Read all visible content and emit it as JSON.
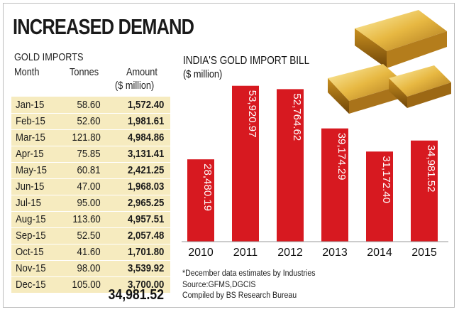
{
  "headline": "INCREASED DEMAND",
  "table": {
    "title": "GOLD IMPORTS",
    "headers": {
      "month": "Month",
      "tonnes": "Tonnes",
      "amount": "Amount",
      "amount_unit": "($ million)"
    },
    "rows": [
      {
        "month": "Jan-15",
        "tonnes": "58.60",
        "amount": "1,572.40"
      },
      {
        "month": "Feb-15",
        "tonnes": "52.60",
        "amount": "1,981.61"
      },
      {
        "month": "Mar-15",
        "tonnes": "121.80",
        "amount": "4,984.86"
      },
      {
        "month": "Apr-15",
        "tonnes": "75.85",
        "amount": "3,131.41"
      },
      {
        "month": "May-15",
        "tonnes": "60.81",
        "amount": "2,421.25"
      },
      {
        "month": "Jun-15",
        "tonnes": "47.00",
        "amount": "1,968.03"
      },
      {
        "month": "Jul-15",
        "tonnes": "95.00",
        "amount": "2,965.25"
      },
      {
        "month": "Aug-15",
        "tonnes": "113.60",
        "amount": "4,957.51"
      },
      {
        "month": "Sep-15",
        "tonnes": "52.50",
        "amount": "2,057.48"
      },
      {
        "month": "Oct-15",
        "tonnes": "41.60",
        "amount": "1,701.80"
      },
      {
        "month": "Nov-15",
        "tonnes": "98.00",
        "amount": "3,539.92"
      },
      {
        "month": "Dec-15",
        "tonnes": "105.00",
        "amount": "3,700.00"
      }
    ],
    "total": "34,981.52"
  },
  "chart_data": {
    "type": "bar",
    "title": "INDIA'S GOLD IMPORT BILL",
    "ylabel": "($ million)",
    "categories": [
      "2010",
      "2011",
      "2012",
      "2013",
      "2014",
      "2015"
    ],
    "values": [
      28480.19,
      53920.97,
      52764.62,
      39174.29,
      31172.4,
      34981.52
    ],
    "value_labels": [
      "28,480.19",
      "53,920.97",
      "52,764.62",
      "39,174.29",
      "31,172.40",
      "34,981.52"
    ],
    "ylim": [
      0,
      60000
    ],
    "bar_color": "#d71920",
    "grid": false,
    "legend": "none"
  },
  "notes": [
    "*December data estimates by Industries",
    "Source:GFMS,DGCIS",
    "Compiled by BS Research Bureau"
  ],
  "image": {
    "icon": "gold-bars-icon"
  },
  "colors": {
    "table_bg": "#f6ebbf",
    "bar": "#d71920",
    "gold": "#d4a22a"
  }
}
